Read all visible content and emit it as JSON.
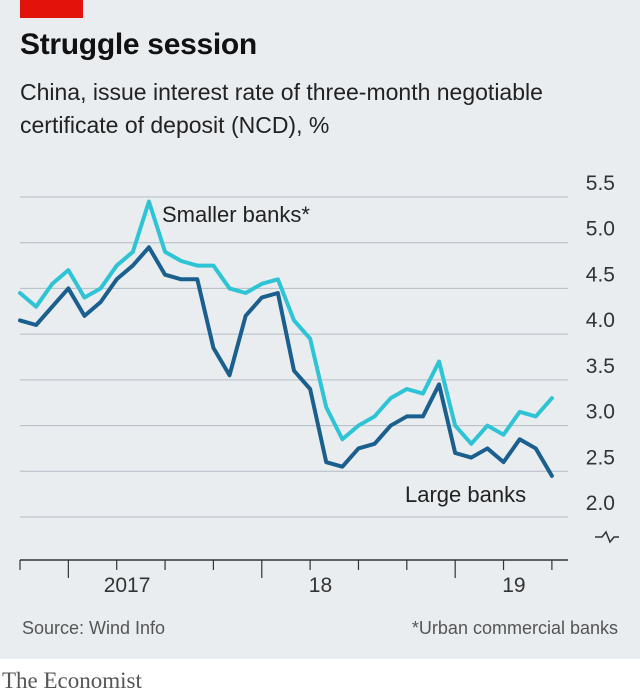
{
  "header": {
    "title": "Struggle session",
    "subtitle": "China, issue interest rate of three-month negotiable certificate of deposit (NCD), %"
  },
  "chart_data": {
    "type": "line",
    "xlabel": "",
    "ylabel": "",
    "x_ticks": [
      "2017",
      "18",
      "19"
    ],
    "ylim": [
      2.0,
      5.5
    ],
    "y_ticks": [
      2.0,
      2.5,
      3.0,
      3.5,
      4.0,
      4.5,
      5.0,
      5.5
    ],
    "y_tick_labels": [
      "2.0",
      "2.5",
      "3.0",
      "3.5",
      "4.0",
      "4.5",
      "5.0",
      "5.5"
    ],
    "grid": true,
    "series": [
      {
        "name": "Smaller banks*",
        "color": "#2ec4d6",
        "x": [
          "2016-10",
          "2016-11",
          "2016-12",
          "2017-01",
          "2017-02",
          "2017-03",
          "2017-04",
          "2017-05",
          "2017-06",
          "2017-07",
          "2017-08",
          "2017-09",
          "2017-10",
          "2017-11",
          "2017-12",
          "2018-01",
          "2018-02",
          "2018-03",
          "2018-04",
          "2018-05",
          "2018-06",
          "2018-07",
          "2018-08",
          "2018-09",
          "2018-10",
          "2018-11",
          "2018-12",
          "2019-01",
          "2019-02",
          "2019-03",
          "2019-04",
          "2019-05",
          "2019-06",
          "2019-07"
        ],
        "values": [
          4.45,
          4.3,
          4.55,
          4.7,
          4.4,
          4.5,
          4.75,
          4.9,
          5.45,
          4.9,
          4.8,
          4.75,
          4.75,
          4.5,
          4.45,
          4.55,
          4.6,
          4.15,
          3.95,
          3.2,
          2.85,
          3.0,
          3.1,
          3.3,
          3.4,
          3.35,
          3.7,
          3.0,
          2.8,
          3.0,
          2.9,
          3.15,
          3.1,
          3.3
        ]
      },
      {
        "name": "Large banks",
        "color": "#1a5f8e",
        "x": [
          "2016-10",
          "2016-11",
          "2016-12",
          "2017-01",
          "2017-02",
          "2017-03",
          "2017-04",
          "2017-05",
          "2017-06",
          "2017-07",
          "2017-08",
          "2017-09",
          "2017-10",
          "2017-11",
          "2017-12",
          "2018-01",
          "2018-02",
          "2018-03",
          "2018-04",
          "2018-05",
          "2018-06",
          "2018-07",
          "2018-08",
          "2018-09",
          "2018-10",
          "2018-11",
          "2018-12",
          "2019-01",
          "2019-02",
          "2019-03",
          "2019-04",
          "2019-05",
          "2019-06",
          "2019-07"
        ],
        "values": [
          4.15,
          4.1,
          4.3,
          4.5,
          4.2,
          4.35,
          4.6,
          4.75,
          4.95,
          4.65,
          4.6,
          4.6,
          3.85,
          3.55,
          4.2,
          4.4,
          4.45,
          3.6,
          3.4,
          2.6,
          2.55,
          2.75,
          2.8,
          3.0,
          3.1,
          3.1,
          3.45,
          2.7,
          2.65,
          2.75,
          2.6,
          2.85,
          2.75,
          2.45
        ]
      }
    ],
    "annotations": [
      "Smaller banks*",
      "Large banks"
    ]
  },
  "footer": {
    "source": "Source: Wind Info",
    "footnote": "*Urban commercial banks",
    "brand": "The Economist"
  }
}
